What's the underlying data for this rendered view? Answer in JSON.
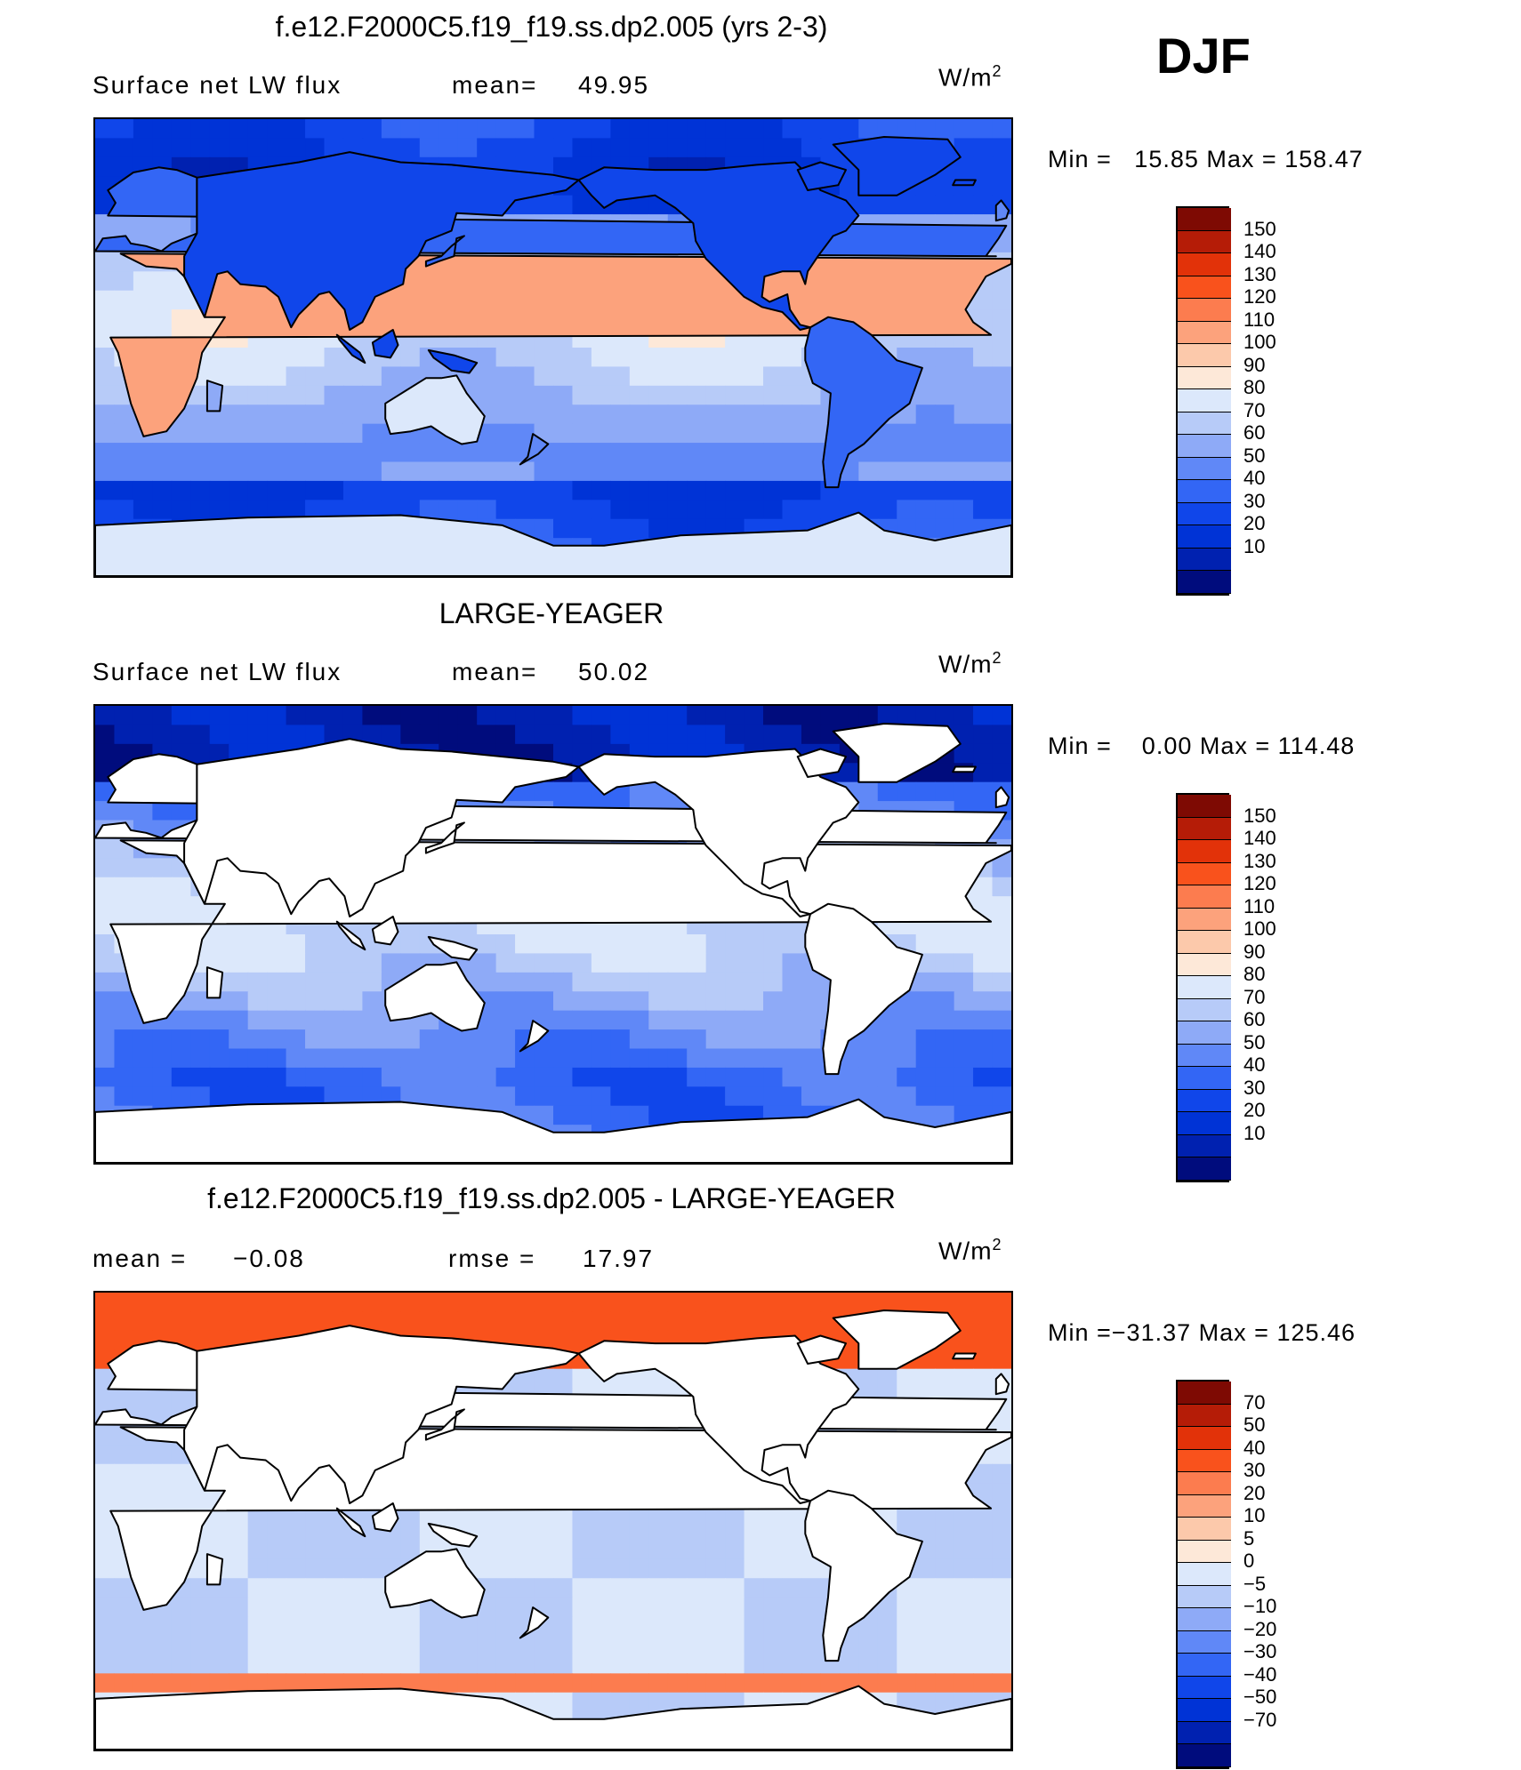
{
  "season": "DJF",
  "colors": {
    "abs_levels": [
      "#000c7d",
      "#0021b0",
      "#0033d6",
      "#1046ea",
      "#3366f5",
      "#6088f7",
      "#8eaaf7",
      "#b7cbf8",
      "#dce8fb",
      "#fde8d8",
      "#fcc9ab",
      "#fca27c",
      "#fc7c4f",
      "#f9521c",
      "#e23209",
      "#b51c07",
      "#7e0a03"
    ],
    "diff_levels": [
      "#000c7d",
      "#0021b0",
      "#0033d6",
      "#1046ea",
      "#3366f5",
      "#6088f7",
      "#8eaaf7",
      "#b7cbf8",
      "#dce8fb",
      "#fde8d8",
      "#fcc9ab",
      "#fca27c",
      "#fc7c4f",
      "#f9521c",
      "#e23209",
      "#b51c07",
      "#7e0a03"
    ]
  },
  "chart_data": [
    {
      "type": "heatmap",
      "title": "f.e12.F2000C5.f19_f19.ss.dp2.005 (yrs 2-3)",
      "variable": "Surface net LW flux",
      "stat_label": "mean=",
      "stat_value": "49.95",
      "units": "W/m",
      "units_sup": "2",
      "min_label": "Min =",
      "min_value": "15.85",
      "max_label": "Max =",
      "max_value": "158.47",
      "colorbar_labels": [
        "150",
        "140",
        "130",
        "120",
        "110",
        "100",
        "90",
        "80",
        "70",
        "60",
        "50",
        "40",
        "30",
        "20",
        "10"
      ],
      "masked_land": false
    },
    {
      "type": "heatmap",
      "title": "LARGE-YEAGER",
      "variable": "Surface net LW flux",
      "stat_label": "mean=",
      "stat_value": "50.02",
      "units": "W/m",
      "units_sup": "2",
      "min_label": "Min =",
      "min_value": "0.00",
      "max_label": "Max =",
      "max_value": "114.48",
      "colorbar_labels": [
        "150",
        "140",
        "130",
        "120",
        "110",
        "100",
        "90",
        "80",
        "70",
        "60",
        "50",
        "40",
        "30",
        "20",
        "10"
      ],
      "masked_land": true
    },
    {
      "type": "heatmap",
      "title": "f.e12.F2000C5.f19_f19.ss.dp2.005 - LARGE-YEAGER",
      "stat_label": "mean =",
      "stat_value": "−0.08",
      "rmse_label": "rmse =",
      "rmse_value": "17.97",
      "units": "W/m",
      "units_sup": "2",
      "min_label": "Min =",
      "min_value": "−31.37",
      "max_label": "Max =",
      "max_value": "125.46",
      "colorbar_labels": [
        "70",
        "50",
        "40",
        "30",
        "20",
        "10",
        "5",
        "0",
        "−5",
        "−10",
        "−20",
        "−30",
        "−40",
        "−50",
        "−70"
      ],
      "masked_land": true
    }
  ]
}
